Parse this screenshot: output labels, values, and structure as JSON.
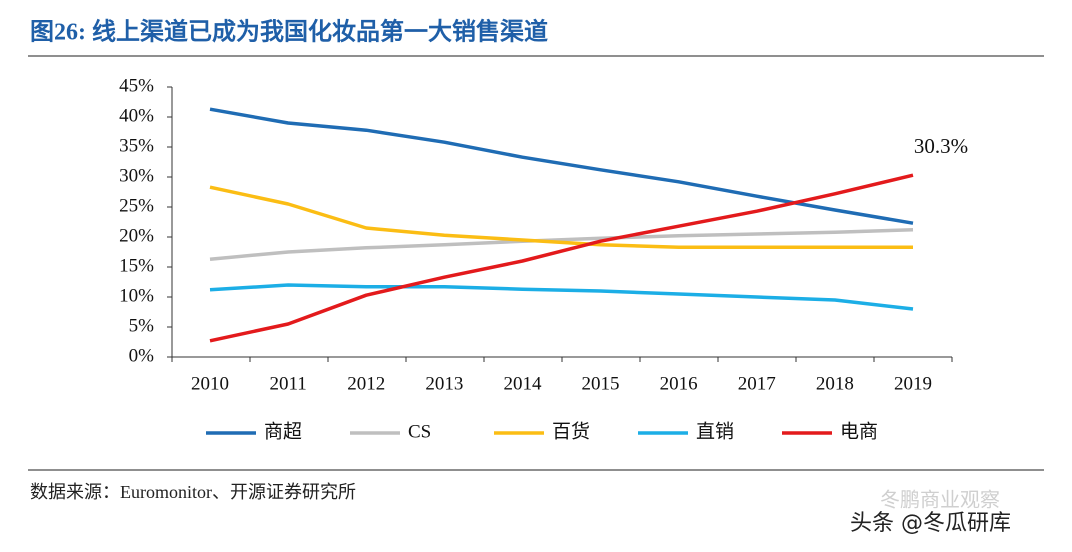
{
  "chart_data": {
    "type": "line",
    "title": "图26:  线上渠道已成为我国化妆品第一大销售渠道",
    "categories": [
      "2010",
      "2011",
      "2012",
      "2013",
      "2014",
      "2015",
      "2016",
      "2017",
      "2018",
      "2019"
    ],
    "series": [
      {
        "name": "商超",
        "color": "#1f6cb4",
        "values": [
          41.3,
          39.0,
          37.8,
          35.8,
          33.3,
          31.2,
          29.2,
          26.8,
          24.5,
          22.3
        ]
      },
      {
        "name": "CS",
        "color": "#bfbfbf",
        "values": [
          16.3,
          17.5,
          18.2,
          18.7,
          19.3,
          19.8,
          20.2,
          20.5,
          20.8,
          21.2
        ]
      },
      {
        "name": "百货",
        "color": "#fbbd14",
        "values": [
          28.3,
          25.5,
          21.5,
          20.3,
          19.5,
          18.7,
          18.3,
          18.3,
          18.3,
          18.3
        ]
      },
      {
        "name": "直销",
        "color": "#1caee6",
        "values": [
          11.2,
          12.0,
          11.7,
          11.7,
          11.3,
          11.0,
          10.5,
          10.0,
          9.5,
          8.0
        ]
      },
      {
        "name": "电商",
        "color": "#e31a1c",
        "values": [
          2.7,
          5.5,
          10.3,
          13.3,
          16.0,
          19.3,
          21.8,
          24.3,
          27.2,
          30.3
        ],
        "value_labels": [
          null,
          null,
          null,
          null,
          null,
          null,
          null,
          null,
          null,
          "30.3%"
        ]
      }
    ],
    "ylim": [
      0,
      45
    ],
    "yticks": [
      {
        "value": 0,
        "label": "0%"
      },
      {
        "value": 5,
        "label": "5%"
      },
      {
        "value": 10,
        "label": "10%"
      },
      {
        "value": 15,
        "label": "15%"
      },
      {
        "value": 20,
        "label": "20%"
      },
      {
        "value": 25,
        "label": "25%"
      },
      {
        "value": 30,
        "label": "30%"
      },
      {
        "value": 35,
        "label": "35%"
      },
      {
        "value": 40,
        "label": "40%"
      },
      {
        "value": 45,
        "label": "45%"
      }
    ],
    "grid": false,
    "legend": "bottom",
    "source": "数据来源：Euromonitor、开源证券研究所",
    "watermark": "头条 @冬瓜研库",
    "watermark2": "冬鹏商业观察"
  }
}
